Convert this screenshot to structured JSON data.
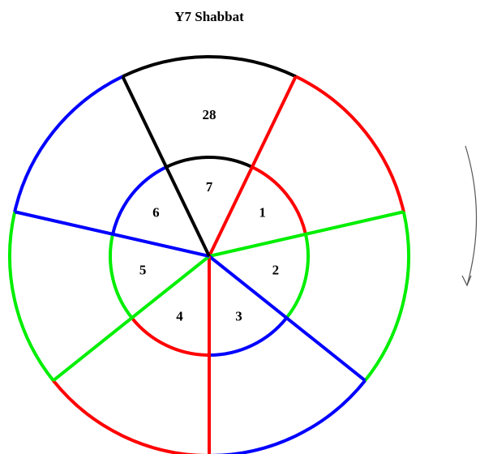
{
  "title": "Y7 Shabbat",
  "sectors": [
    {
      "label": "1",
      "color": "#ff0000"
    },
    {
      "label": "2",
      "color": "#00ee00"
    },
    {
      "label": "3",
      "color": "#0000ff"
    },
    {
      "label": "4",
      "color": "#ff0000"
    },
    {
      "label": "5",
      "color": "#00ee00"
    },
    {
      "label": "6",
      "color": "#0000ff"
    },
    {
      "label": "7",
      "color": "#000000"
    }
  ],
  "outer_label": "28"
}
